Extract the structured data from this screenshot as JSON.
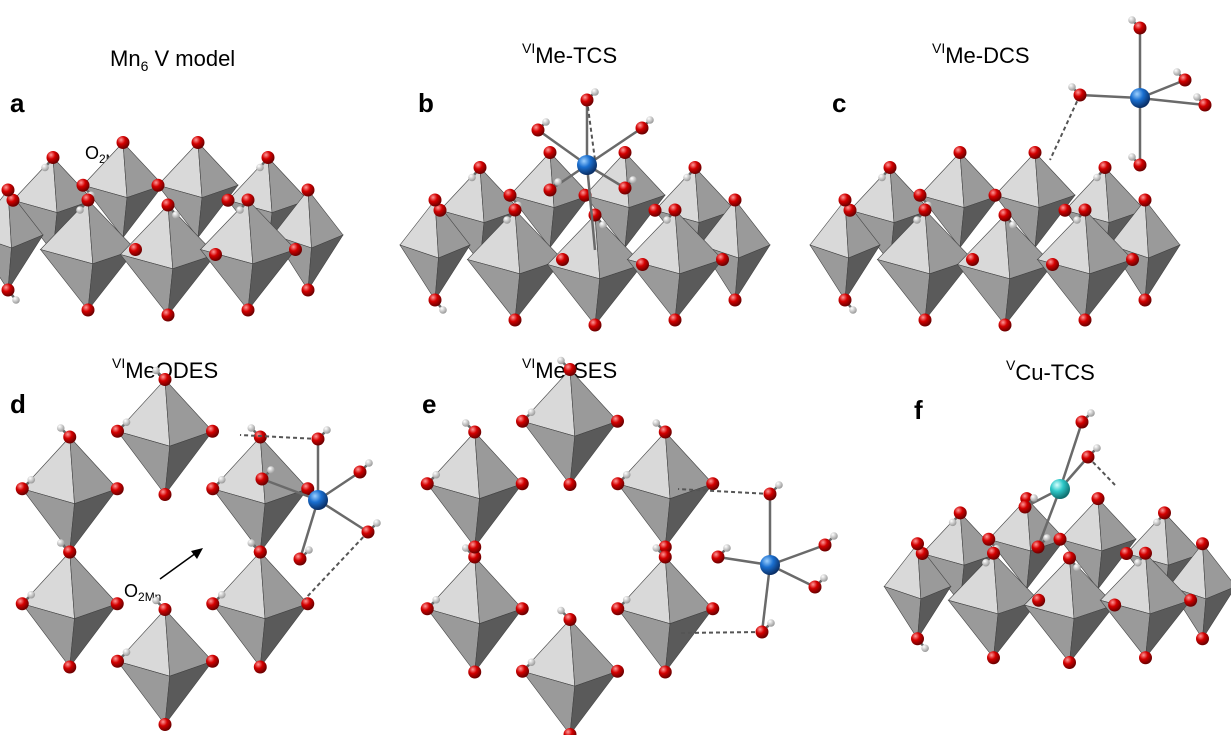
{
  "panels": [
    {
      "letter": "a",
      "title_main": "Mn",
      "title_sub": "6",
      "title_rest": "V model",
      "annotation_main": "O",
      "annotation_sub": "2Mn"
    },
    {
      "letter": "b",
      "title_sup": "VI",
      "title_rest": "Me-TCS"
    },
    {
      "letter": "c",
      "title_sup": "VI",
      "title_rest": "Me-DCS"
    },
    {
      "letter": "d",
      "title_sup": "VI",
      "title_rest": "MeODES",
      "annotation_main": "O",
      "annotation_sub": "2Mn"
    },
    {
      "letter": "e",
      "title_sup": "VI",
      "title_rest": "Me-SES"
    },
    {
      "letter": "f",
      "title_sup": "V",
      "title_rest": "Cu-TCS"
    }
  ],
  "colors": {
    "oxygen": "#d40000",
    "hydrogen": "#e8e8e8",
    "metal_blue": "#1a6fd0",
    "metal_cyan": "#2ec8c8",
    "poly_light": "#d9d9d9",
    "poly_mid": "#9a9a9a",
    "poly_dark": "#5a5a5a"
  }
}
